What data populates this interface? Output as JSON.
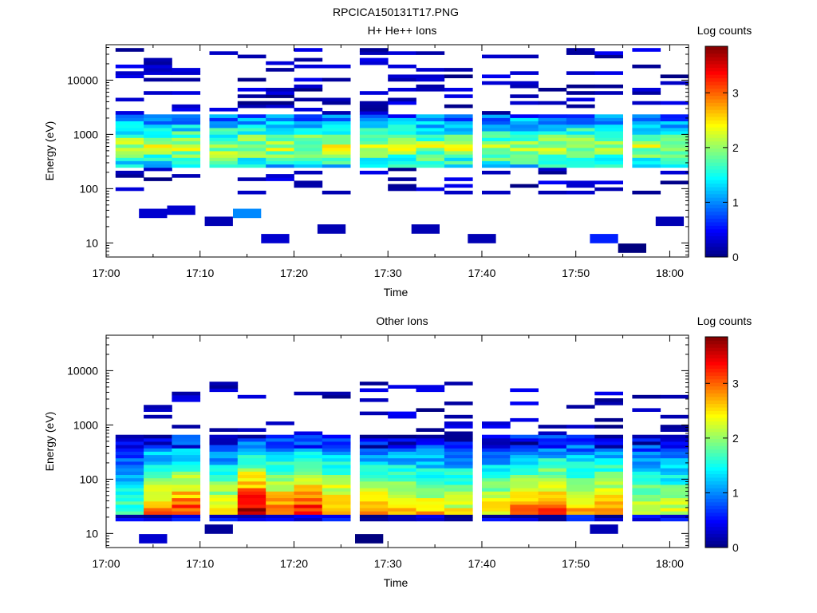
{
  "figure_title": "RPCICA150131T17.PNG",
  "colormap": [
    "#00007f",
    "#0000ff",
    "#007fff",
    "#00ffff",
    "#7fff7f",
    "#ffff00",
    "#ff7f00",
    "#ff0000",
    "#7f0000"
  ],
  "chart_data": [
    {
      "type": "heatmap",
      "title": "H+ He++ Ions",
      "xlabel": "Time",
      "ylabel": "Energy (eV)",
      "colorbar_label": "Log counts",
      "y_scale": "log",
      "xlim": [
        "17:00",
        "18:02"
      ],
      "ylim": [
        5.5,
        45000
      ],
      "x_ticks": [
        "17:00",
        "17:10",
        "17:20",
        "17:30",
        "17:40",
        "17:50",
        "18:00"
      ],
      "y_ticks": [
        "10",
        "100",
        "1000",
        "10000"
      ],
      "clim": [
        0,
        3.85
      ],
      "colorbar_ticks": [
        "0",
        "1",
        "2",
        "3"
      ],
      "time_bins": [
        "17:01",
        "17:04",
        "17:07",
        "17:11",
        "17:14",
        "17:17",
        "17:20",
        "17:23",
        "17:27",
        "17:30",
        "17:33",
        "17:36",
        "17:40",
        "17:43",
        "17:46",
        "17:49",
        "17:52",
        "17:56",
        "17:59"
      ],
      "core_band_eV": [
        250,
        2500
      ],
      "core_peak_log_counts": 2.2,
      "isolated_low_energy_points": [
        {
          "time": "17:05",
          "energy_eV": 35,
          "log_counts": 0.3
        },
        {
          "time": "17:08",
          "energy_eV": 40,
          "log_counts": 0.3
        },
        {
          "time": "17:12",
          "energy_eV": 25,
          "log_counts": 0.2
        },
        {
          "time": "17:15",
          "energy_eV": 35,
          "log_counts": 1.0
        },
        {
          "time": "17:18",
          "energy_eV": 12,
          "log_counts": 0.3
        },
        {
          "time": "17:24",
          "energy_eV": 18,
          "log_counts": 0.2
        },
        {
          "time": "17:34",
          "energy_eV": 18,
          "log_counts": 0.2
        },
        {
          "time": "17:40",
          "energy_eV": 12,
          "log_counts": 0.2
        },
        {
          "time": "17:53",
          "energy_eV": 12,
          "log_counts": 0.6
        },
        {
          "time": "17:56",
          "energy_eV": 8,
          "log_counts": 0.0
        },
        {
          "time": "18:00",
          "energy_eV": 25,
          "log_counts": 0.2
        }
      ]
    },
    {
      "type": "heatmap",
      "title": "Other Ions",
      "xlabel": "Time",
      "ylabel": "Energy (eV)",
      "colorbar_label": "Log counts",
      "y_scale": "log",
      "xlim": [
        "17:00",
        "18:02"
      ],
      "ylim": [
        5.5,
        45000
      ],
      "x_ticks": [
        "17:00",
        "17:10",
        "17:20",
        "17:30",
        "17:40",
        "17:50",
        "18:00"
      ],
      "y_ticks": [
        "10",
        "100",
        "1000",
        "10000"
      ],
      "clim": [
        0,
        3.85
      ],
      "colorbar_ticks": [
        "0",
        "1",
        "2",
        "3"
      ],
      "time_bins": [
        "17:01",
        "17:04",
        "17:07",
        "17:11",
        "17:14",
        "17:17",
        "17:20",
        "17:23",
        "17:27",
        "17:30",
        "17:33",
        "17:36",
        "17:40",
        "17:43",
        "17:46",
        "17:49",
        "17:52",
        "17:56",
        "17:59"
      ],
      "core_band_eV": [
        22,
        700
      ],
      "peak_energy_eV": 30,
      "peak_log_counts_by_bin": [
        1.7,
        2.8,
        3.1,
        2.5,
        3.6,
        2.9,
        3.2,
        2.8,
        2.7,
        2.6,
        2.5,
        2.3,
        2.4,
        2.8,
        3.0,
        2.6,
        2.8,
        2.3,
        2.2
      ],
      "isolated_low_energy_points": [
        {
          "time": "17:05",
          "energy_eV": 8,
          "log_counts": 0.3
        },
        {
          "time": "17:12",
          "energy_eV": 12,
          "log_counts": 0.1
        },
        {
          "time": "17:28",
          "energy_eV": 8,
          "log_counts": 0.0
        },
        {
          "time": "17:53",
          "energy_eV": 12,
          "log_counts": 0.2
        }
      ]
    }
  ]
}
